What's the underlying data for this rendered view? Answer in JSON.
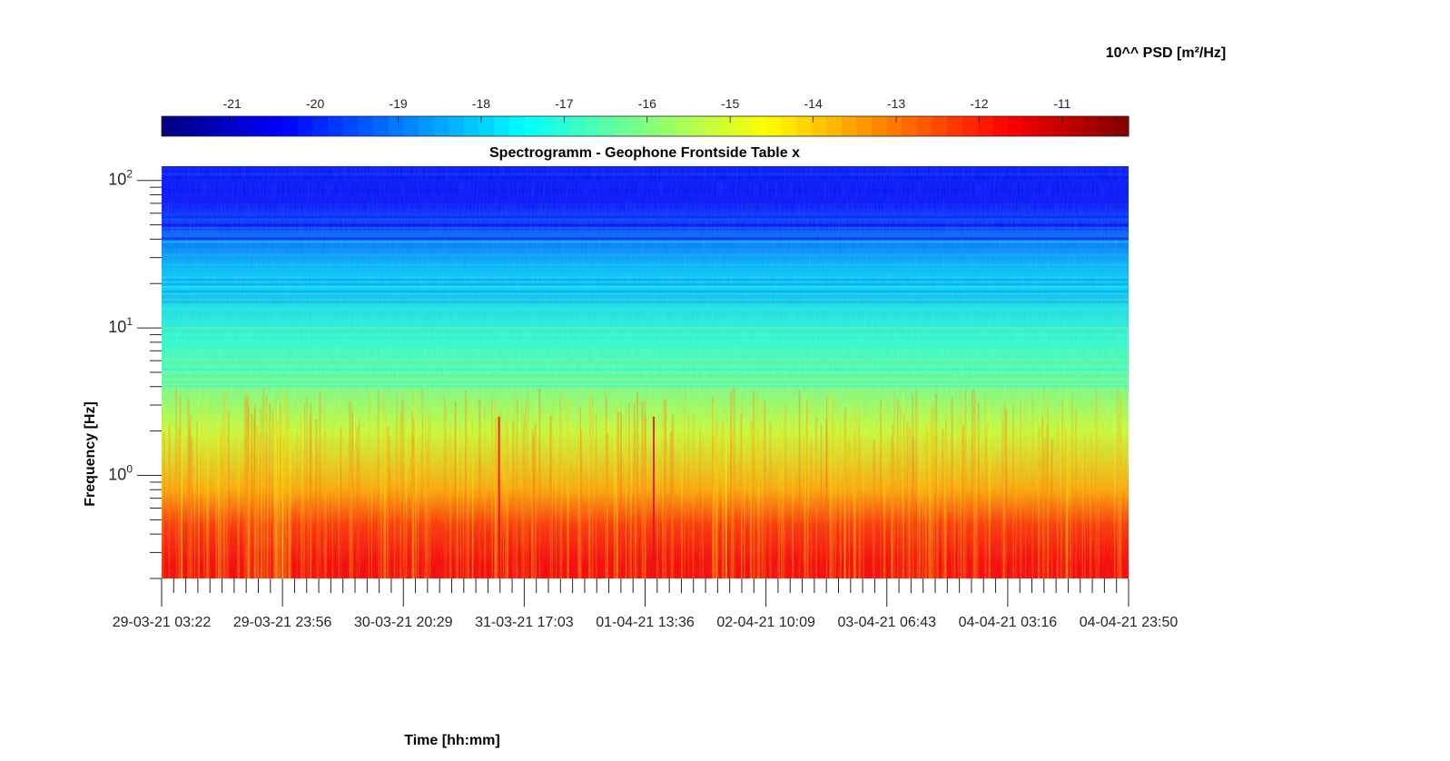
{
  "colorbar": {
    "label": "10^^ PSD [m²/Hz]",
    "ticks": [
      -21,
      -20,
      -19,
      -18,
      -17,
      -16,
      -15,
      -14,
      -13,
      -12,
      -11
    ],
    "range": [
      -21.85,
      -10.2
    ],
    "colormap": "jet"
  },
  "chart_data": {
    "type": "heatmap",
    "title": "Spectrogramm - Geophone Frontside Table x",
    "xlabel": "Time [hh:mm]",
    "ylabel": "Frequency [Hz]",
    "x_tick_labels": [
      "29-03-21 03:22",
      "29-03-21 23:56",
      "30-03-21 20:29",
      "31-03-21 17:03",
      "01-04-21 13:36",
      "02-04-21 10:09",
      "03-04-21 06:43",
      "04-04-21 03:16",
      "04-04-21 23:50"
    ],
    "y_scale": "log",
    "ylim": [
      0.2,
      125
    ],
    "y_ticks": [
      1,
      10,
      100
    ],
    "y_tick_labels": [
      {
        "base": "10",
        "exp": "0"
      },
      {
        "base": "10",
        "exp": "1"
      },
      {
        "base": "10",
        "exp": "2"
      }
    ],
    "z_units": "log10 PSD [m²/Hz]",
    "bands": [
      {
        "f_low": 0.2,
        "f_high": 0.32,
        "log10_psd": -11.6
      },
      {
        "f_low": 0.32,
        "f_high": 0.65,
        "log10_psd": -12.2
      },
      {
        "f_low": 0.65,
        "f_high": 1.0,
        "log10_psd": -13.6
      },
      {
        "f_low": 1.0,
        "f_high": 4.0,
        "log10_psd": -15.2
      },
      {
        "f_low": 4.0,
        "f_high": 15.0,
        "log10_psd": -16.9
      },
      {
        "f_low": 15.0,
        "f_high": 40.0,
        "log10_psd": -18.2
      },
      {
        "f_low": 40.0,
        "f_high": 125.0,
        "log10_psd": -20.2
      }
    ],
    "transient_events": [
      "31-03-21 ~06:00",
      "01-04-21 ~13:30"
    ]
  }
}
